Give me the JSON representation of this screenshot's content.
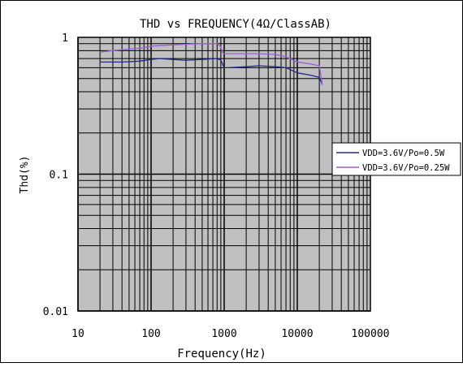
{
  "chart_data": {
    "type": "line",
    "title": "THD vs FREQUENCY(4Ω/ClassAB)",
    "xlabel": "Frequency(Hz)",
    "ylabel": "Thd(%)",
    "xscale": "log",
    "yscale": "log",
    "xlim": [
      10,
      100000
    ],
    "ylim": [
      0.01,
      1
    ],
    "x_ticks": [
      "10",
      "100",
      "1000",
      "10000",
      "100000"
    ],
    "y_ticks": [
      "1",
      "0.1",
      "0.01"
    ],
    "grid": true,
    "plot_background": "#c0c0c0",
    "legend_position": "right",
    "series": [
      {
        "name": "VDD=3.6V/Po=0.5W",
        "color": "#1f2a8a",
        "x": [
          20,
          40,
          70,
          100,
          130,
          200,
          300,
          500,
          800,
          900,
          1000,
          1100,
          2000,
          3000,
          5000,
          7000,
          10000,
          15000,
          20000,
          22000
        ],
        "y": [
          0.66,
          0.66,
          0.67,
          0.69,
          0.7,
          0.69,
          0.68,
          0.69,
          0.7,
          0.68,
          0.6,
          0.6,
          0.61,
          0.62,
          0.61,
          0.6,
          0.55,
          0.53,
          0.51,
          0.45
        ]
      },
      {
        "name": "VDD=3.6V/Po=0.25W",
        "color": "#9b5fd6",
        "x": [
          20,
          30,
          50,
          80,
          100,
          130,
          200,
          300,
          500,
          800,
          900,
          950,
          1000,
          2000,
          3000,
          5000,
          7000,
          10000,
          15000,
          20000,
          22000
        ],
        "y": [
          0.78,
          0.8,
          0.82,
          0.84,
          0.86,
          0.87,
          0.88,
          0.89,
          0.9,
          0.9,
          0.85,
          0.77,
          0.76,
          0.76,
          0.76,
          0.75,
          0.72,
          0.66,
          0.64,
          0.62,
          0.45
        ]
      }
    ]
  }
}
